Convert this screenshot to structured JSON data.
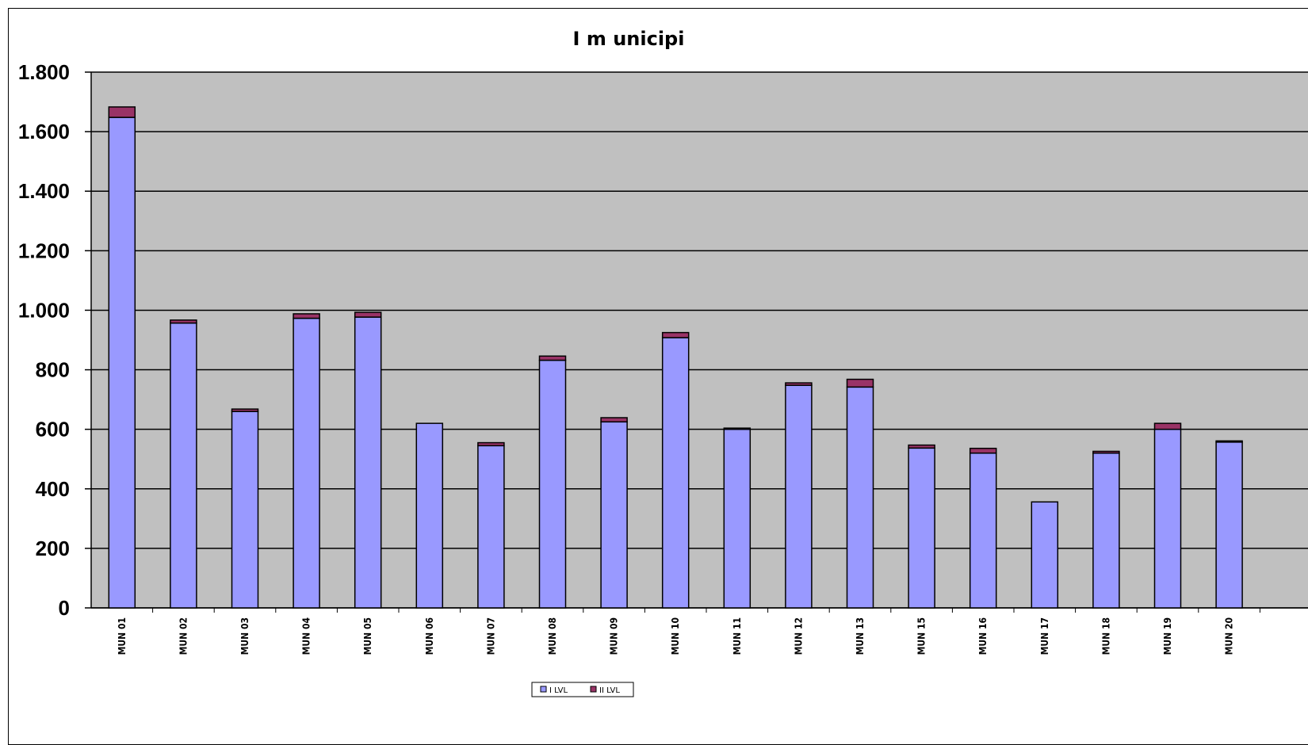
{
  "chart_data": {
    "type": "bar",
    "stacked": true,
    "title": "I m unicipi",
    "xlabel": "",
    "ylabel": "",
    "ylim": [
      0,
      1800
    ],
    "yticks": [
      0,
      200,
      400,
      600,
      800,
      1000,
      1200,
      1400,
      1600,
      1800
    ],
    "ytick_labels": [
      "0",
      "200",
      "400",
      "600",
      "800",
      "1.000",
      "1.200",
      "1.400",
      "1.600",
      "1.800"
    ],
    "grid": true,
    "legend_position": "bottom",
    "categories": [
      "MUN 01",
      "MUN 02",
      "MUN 03",
      "MUN 04",
      "MUN 05",
      "MUN 06",
      "MUN 07",
      "MUN 08",
      "MUN 09",
      "MUN 10",
      "MUN 11",
      "MUN 12",
      "MUN 13",
      "MUN 15",
      "MUN 16",
      "MUN 17",
      "MUN 18",
      "MUN 19",
      "MUN 20"
    ],
    "series": [
      {
        "name": "I LVL",
        "color": "#9999ff",
        "values": [
          1648,
          957,
          660,
          973,
          977,
          620,
          545,
          832,
          625,
          908,
          600,
          748,
          742,
          537,
          520,
          356,
          520,
          600,
          557
        ]
      },
      {
        "name": "II LVL",
        "color": "#993366",
        "values": [
          35,
          10,
          8,
          15,
          16,
          0,
          10,
          14,
          14,
          17,
          4,
          8,
          26,
          10,
          16,
          0,
          6,
          20,
          4
        ]
      }
    ],
    "plot_background": "#c0c0c0",
    "gridline_color": "#000000"
  }
}
